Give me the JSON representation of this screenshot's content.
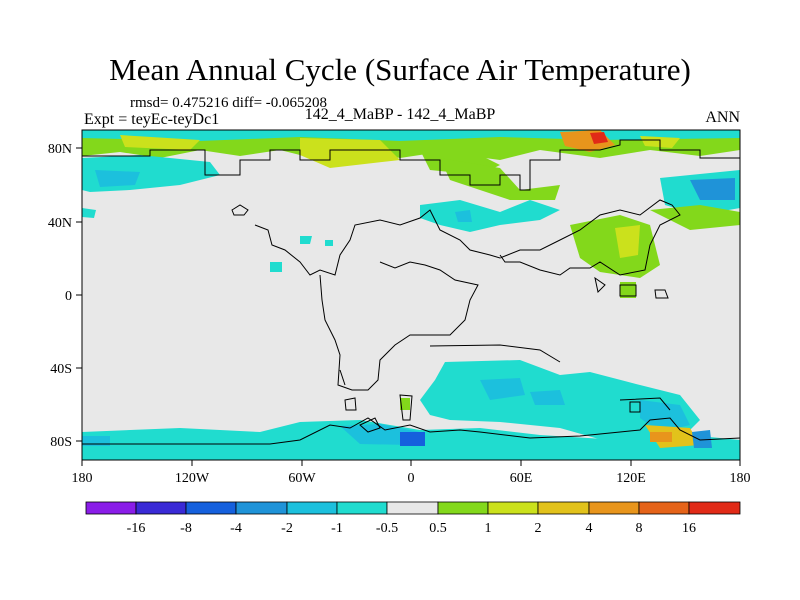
{
  "title": "Mean Annual Cycle (Surface Air Temperature)",
  "stats": {
    "text": "rmsd= 0.475216 diff= -0.065208"
  },
  "experiment": {
    "left": "Expt = teyEc-teyDc1",
    "center": "142_4_MaBP - 142_4_MaBP",
    "season": "ANN"
  },
  "axes": {
    "x_ticks": [
      "180",
      "120W",
      "60W",
      "0",
      "60E",
      "120E",
      "180"
    ],
    "y_ticks": [
      "80N",
      "40N",
      "0",
      "40S",
      "80S"
    ]
  },
  "colorbar": {
    "labels": [
      "-16",
      "-8",
      "-4",
      "-2",
      "-1",
      "-0.5",
      "0.5",
      "1",
      "2",
      "4",
      "8",
      "16"
    ],
    "colors": [
      "#8a1de8",
      "#3a2ad6",
      "#1560dd",
      "#1f93d8",
      "#1cc0dd",
      "#20dccf",
      "#e8e8e8",
      "#83d81b",
      "#cbe11c",
      "#e2c21b",
      "#e8951c",
      "#e56319",
      "#e12a17"
    ]
  }
}
